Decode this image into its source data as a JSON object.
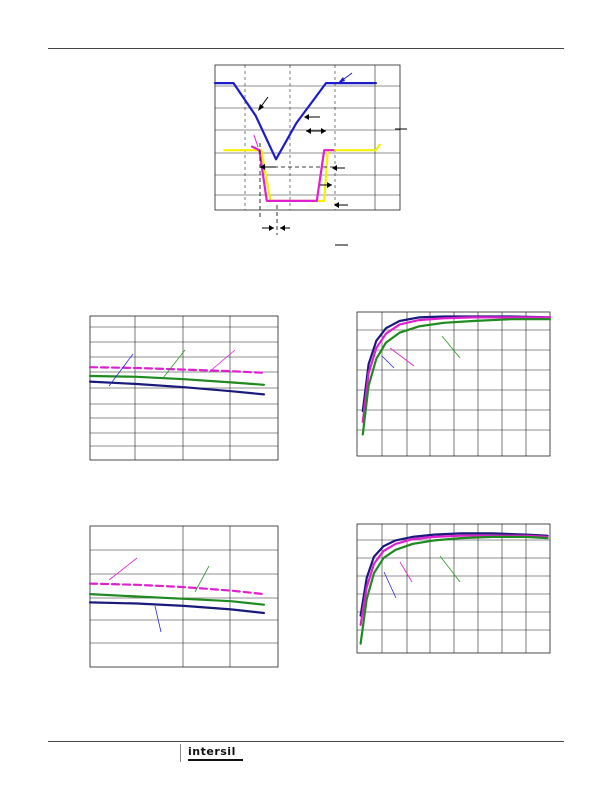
{
  "page": {
    "logo_text": "intersil",
    "logo_name": "intersil-logo"
  },
  "colors": {
    "blue": "#1c1cc8",
    "navy": "#1a1a7a",
    "green": "#1f8a1f",
    "magenta": "#e020d0",
    "yellow": "#f4f000",
    "grid": "#222222",
    "annotation_green": "#2a9a2a",
    "annotation_magenta": "#e020d0",
    "annotation_blue": "#2a2ad0"
  },
  "chart_data": [
    {
      "type": "line",
      "figure": "timing-waveform",
      "x_range": [
        0,
        10
      ],
      "y_range": [
        0,
        8
      ],
      "series": [
        {
          "color": "#1c1cc8",
          "x": [
            0,
            1.0,
            2.2,
            3.3,
            4.4,
            5.2,
            6.0,
            8.7
          ],
          "y": [
            7.0,
            7.0,
            5.2,
            2.8,
            4.8,
            5.9,
            7.0,
            7.0
          ]
        },
        {
          "color": "#f4f000",
          "x": [
            0.5,
            2.5,
            3.0,
            5.9,
            6.1,
            8.7,
            8.9
          ],
          "y": [
            3.3,
            3.3,
            0.5,
            0.5,
            3.3,
            3.3,
            3.6
          ]
        },
        {
          "color": "#e020d0",
          "x": [
            2.0,
            2.4,
            2.8,
            5.5,
            5.9,
            6.4
          ],
          "y": [
            3.5,
            3.3,
            0.5,
            0.5,
            3.3,
            3.3
          ]
        }
      ]
    },
    {
      "type": "line",
      "figure": "graph-top-left",
      "x_range": [
        0,
        4
      ],
      "y_range": [
        0,
        9
      ],
      "series": [
        {
          "color": "#e020d0",
          "dashed": true,
          "x": [
            0,
            1,
            2,
            3,
            3.7
          ],
          "y": [
            5.8,
            5.75,
            5.65,
            5.55,
            5.45
          ]
        },
        {
          "color": "#1f8a1f",
          "x": [
            0,
            1,
            2,
            3,
            3.7
          ],
          "y": [
            5.25,
            5.2,
            5.05,
            4.85,
            4.7
          ]
        },
        {
          "color": "#1a1a7a",
          "x": [
            0,
            1,
            2,
            3,
            3.7
          ],
          "y": [
            4.9,
            4.75,
            4.55,
            4.3,
            4.1
          ]
        }
      ]
    },
    {
      "type": "line",
      "figure": "graph-top-right",
      "x_range": [
        0,
        10
      ],
      "y_range": [
        0,
        8
      ],
      "series": [
        {
          "color": "#1a1a7a",
          "x": [
            0.3,
            0.6,
            1.0,
            1.5,
            2.2,
            3.2,
            4.5,
            6.0,
            8.0,
            10.0
          ],
          "y": [
            2.5,
            5.1,
            6.4,
            7.1,
            7.5,
            7.7,
            7.75,
            7.75,
            7.75,
            7.7
          ]
        },
        {
          "color": "#e020d0",
          "x": [
            0.3,
            0.6,
            1.0,
            1.5,
            2.2,
            3.2,
            4.5,
            6.0,
            8.0,
            10.0
          ],
          "y": [
            1.9,
            4.6,
            6.0,
            6.8,
            7.3,
            7.55,
            7.65,
            7.7,
            7.7,
            7.7
          ]
        },
        {
          "color": "#1f8a1f",
          "x": [
            0.3,
            0.6,
            1.0,
            1.5,
            2.2,
            3.2,
            4.5,
            6.0,
            8.0,
            10.0
          ],
          "y": [
            1.2,
            3.9,
            5.4,
            6.3,
            6.85,
            7.2,
            7.4,
            7.5,
            7.6,
            7.6
          ]
        }
      ]
    },
    {
      "type": "line",
      "figure": "graph-bottom-left",
      "x_range": [
        0,
        4
      ],
      "y_range": [
        0,
        6
      ],
      "series": [
        {
          "color": "#e020d0",
          "dashed": true,
          "x": [
            0,
            1,
            2,
            3,
            3.7
          ],
          "y": [
            3.55,
            3.5,
            3.4,
            3.25,
            3.1
          ]
        },
        {
          "color": "#1f8a1f",
          "x": [
            0,
            1,
            2,
            3,
            3.7
          ],
          "y": [
            3.1,
            3.0,
            2.9,
            2.8,
            2.65
          ]
        },
        {
          "color": "#1a1a7a",
          "x": [
            0,
            1,
            2,
            3,
            3.7
          ],
          "y": [
            2.75,
            2.7,
            2.6,
            2.45,
            2.3
          ]
        }
      ]
    },
    {
      "type": "line",
      "figure": "graph-bottom-right",
      "x_range": [
        0,
        8
      ],
      "y_range": [
        0,
        5.5
      ],
      "series": [
        {
          "color": "#1a1a7a",
          "x": [
            0.15,
            0.4,
            0.7,
            1.1,
            1.6,
            2.3,
            3.2,
            4.3,
            5.6,
            7.0,
            7.9
          ],
          "y": [
            1.6,
            3.2,
            4.1,
            4.55,
            4.8,
            4.95,
            5.05,
            5.1,
            5.1,
            5.05,
            5.0
          ]
        },
        {
          "color": "#e020d0",
          "x": [
            0.15,
            0.4,
            0.7,
            1.1,
            1.6,
            2.3,
            3.2,
            4.3,
            5.6,
            7.0,
            7.9
          ],
          "y": [
            1.2,
            2.8,
            3.8,
            4.35,
            4.65,
            4.85,
            4.95,
            5.0,
            5.0,
            5.0,
            4.95
          ]
        },
        {
          "color": "#1f8a1f",
          "x": [
            0.15,
            0.4,
            0.7,
            1.1,
            1.6,
            2.3,
            3.2,
            4.3,
            5.6,
            7.0,
            7.9
          ],
          "y": [
            0.4,
            2.3,
            3.4,
            4.05,
            4.4,
            4.65,
            4.8,
            4.9,
            4.95,
            4.95,
            4.9
          ]
        }
      ]
    }
  ]
}
